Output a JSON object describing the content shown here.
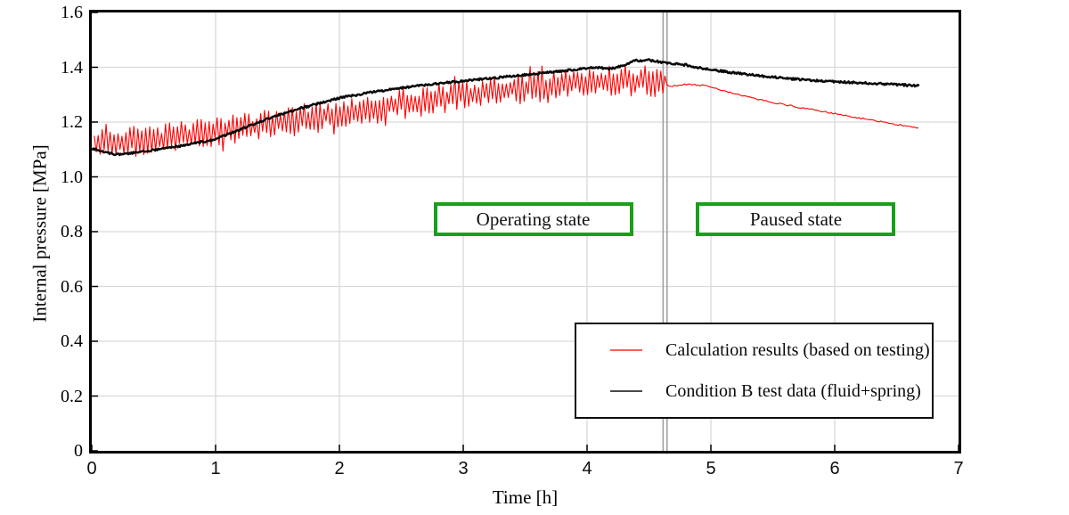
{
  "chart_data": {
    "type": "line",
    "title": "",
    "xlabel": "Time [h]",
    "ylabel": "Internal pressure [MPa]",
    "xlim": [
      0,
      7
    ],
    "ylim": [
      0,
      1.6
    ],
    "x_tick_labels": [
      "0",
      "1",
      "2",
      "3",
      "4",
      "5",
      "6",
      "7"
    ],
    "y_tick_labels": [
      "0",
      "0.2",
      "0.4",
      "0.6",
      "0.8",
      "1.0",
      "1.2",
      "1.4",
      "1.6"
    ],
    "grid": true,
    "grid_color": "#d9d9d9",
    "axis_color": "#000000",
    "event_line": {
      "x": 4.63,
      "color": "#a0a0a0",
      "style": "double-vertical"
    },
    "annotations": [
      {
        "label": "Operating state",
        "x": 3.565,
        "y": 0.845
      },
      {
        "label": "Paused state",
        "x": 5.687,
        "y": 0.845
      }
    ],
    "annotation_border_color": "#18a018",
    "legend_position": "lower right",
    "legend": {
      "items": [
        {
          "label": "Calculation results (based on testing)",
          "marker_color": "#ff5c5c"
        },
        {
          "label": "Condition B test data (fluid+spring)",
          "marker_color": "#4a4a4a"
        }
      ]
    },
    "series": [
      {
        "name": "Calculation results (based on testing)",
        "color": "#ff0000",
        "stroke_width": 1.1,
        "style": "noisy-oscillation-then-smooth",
        "noise_amplitude": 0.058,
        "noise_until_x": 4.63,
        "smooth_jitter": 0.0028,
        "step": 0.016,
        "keypoints": [
          [
            0.02,
            1.125
          ],
          [
            0.3,
            1.128
          ],
          [
            0.6,
            1.14
          ],
          [
            1.0,
            1.162
          ],
          [
            1.5,
            1.198
          ],
          [
            2.0,
            1.23
          ],
          [
            2.5,
            1.266
          ],
          [
            3.0,
            1.297
          ],
          [
            3.5,
            1.325
          ],
          [
            4.0,
            1.345
          ],
          [
            4.3,
            1.352
          ],
          [
            4.63,
            1.348
          ],
          [
            4.66,
            1.33
          ],
          [
            4.8,
            1.338
          ],
          [
            4.95,
            1.334
          ],
          [
            5.1,
            1.316
          ],
          [
            5.25,
            1.297
          ],
          [
            5.4,
            1.281
          ],
          [
            5.6,
            1.263
          ],
          [
            5.8,
            1.247
          ],
          [
            6.0,
            1.231
          ],
          [
            6.2,
            1.215
          ],
          [
            6.4,
            1.199
          ],
          [
            6.55,
            1.188
          ],
          [
            6.68,
            1.178
          ]
        ]
      },
      {
        "name": "Condition B test data (fluid+spring)",
        "color": "#0a0a0a",
        "stroke_width": 2.5,
        "style": "smooth-with-jitter",
        "noise_amplitude": 0.0038,
        "step": 0.008,
        "keypoints": [
          [
            0.0,
            1.105
          ],
          [
            0.08,
            1.092
          ],
          [
            0.2,
            1.082
          ],
          [
            0.35,
            1.088
          ],
          [
            0.5,
            1.098
          ],
          [
            0.75,
            1.115
          ],
          [
            1.0,
            1.138
          ],
          [
            1.25,
            1.182
          ],
          [
            1.5,
            1.225
          ],
          [
            1.75,
            1.258
          ],
          [
            2.0,
            1.288
          ],
          [
            2.25,
            1.308
          ],
          [
            2.5,
            1.325
          ],
          [
            2.75,
            1.338
          ],
          [
            3.0,
            1.35
          ],
          [
            3.25,
            1.361
          ],
          [
            3.5,
            1.372
          ],
          [
            3.75,
            1.384
          ],
          [
            4.0,
            1.396
          ],
          [
            4.1,
            1.399
          ],
          [
            4.18,
            1.394
          ],
          [
            4.28,
            1.404
          ],
          [
            4.38,
            1.424
          ],
          [
            4.5,
            1.426
          ],
          [
            4.63,
            1.417
          ],
          [
            4.8,
            1.408
          ],
          [
            5.0,
            1.391
          ],
          [
            5.25,
            1.376
          ],
          [
            5.5,
            1.364
          ],
          [
            5.75,
            1.354
          ],
          [
            6.0,
            1.347
          ],
          [
            6.25,
            1.342
          ],
          [
            6.5,
            1.337
          ],
          [
            6.68,
            1.332
          ]
        ]
      }
    ]
  }
}
